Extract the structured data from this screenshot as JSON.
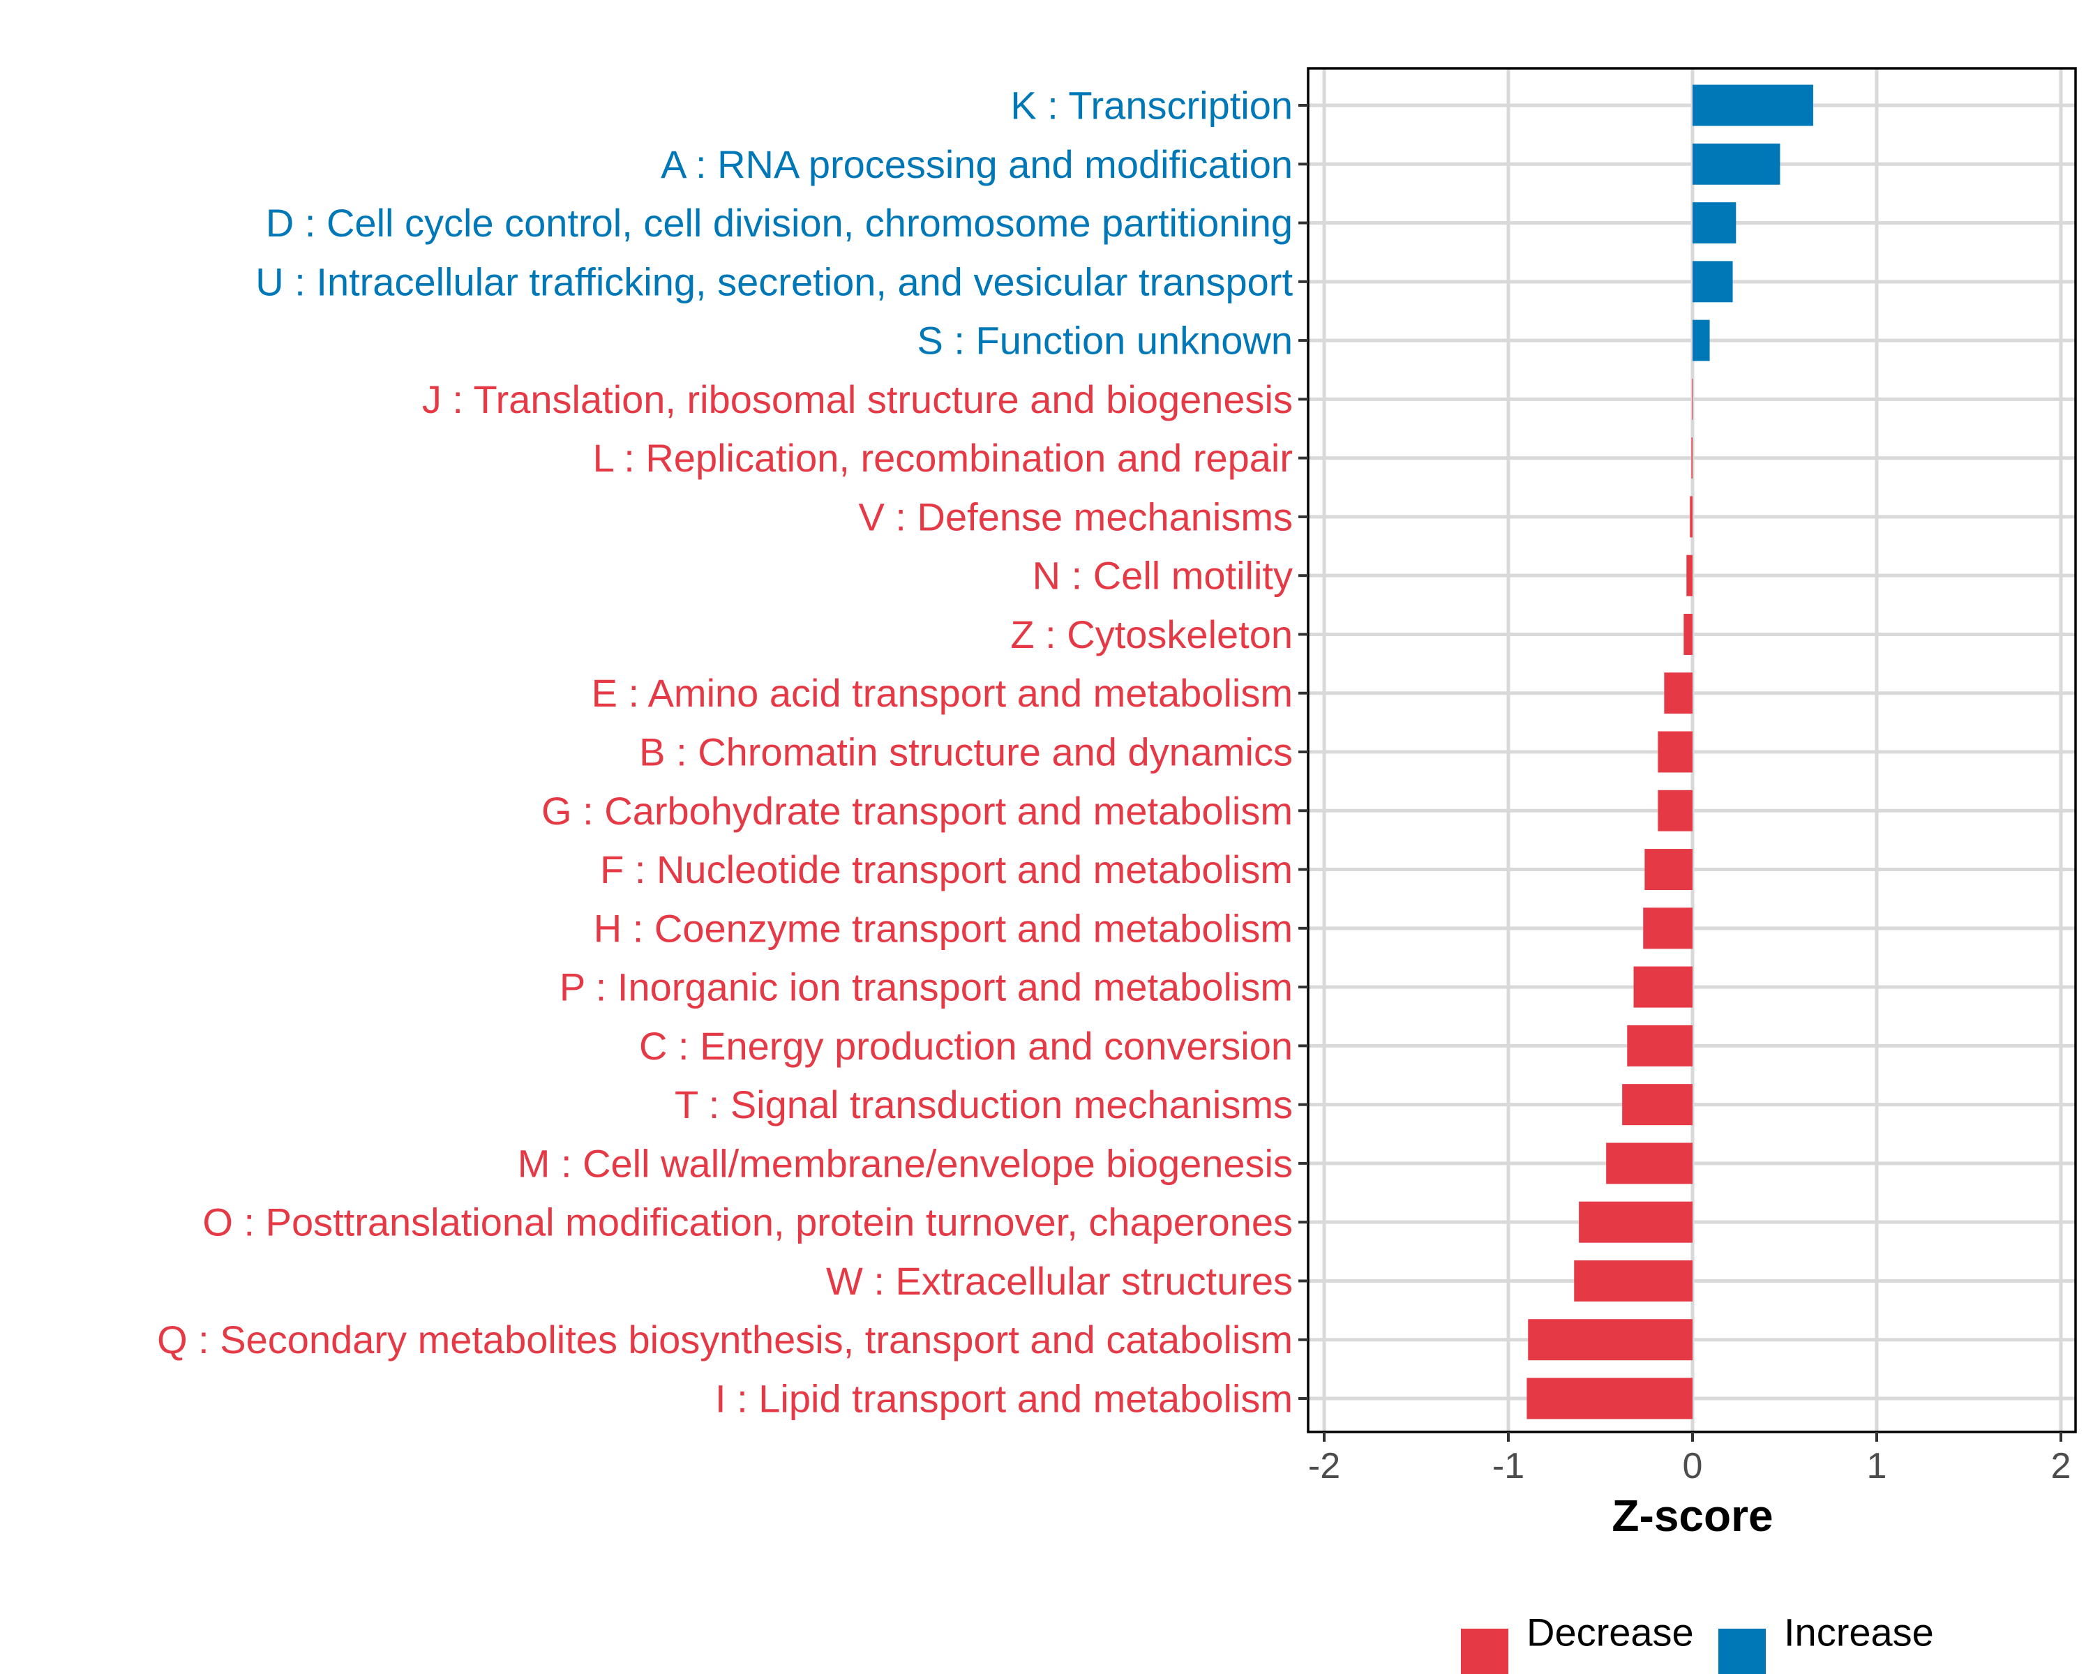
{
  "chart_data": {
    "type": "bar",
    "orientation": "horizontal",
    "title": "",
    "xlabel": "Z-score",
    "ylabel": "",
    "xlim": [
      -2.05,
      2.05
    ],
    "x_ticks": [
      -2,
      -1,
      0,
      1,
      2
    ],
    "x_tick_labels": [
      "-2",
      "-1",
      "0",
      "1",
      "2"
    ],
    "grid": true,
    "legend_position": "bottom",
    "colors": {
      "Decrease": "#E63946",
      "Increase": "#0077B6"
    },
    "legend": [
      {
        "label": "Decrease",
        "color": "#E63946"
      },
      {
        "label": "Increase",
        "color": "#0077B6"
      }
    ],
    "categories": [
      "K : Transcription",
      "A : RNA processing and modification",
      "D : Cell cycle control, cell division, chromosome partitioning",
      "U : Intracellular trafficking, secretion, and vesicular transport",
      "S : Function unknown",
      "J : Translation, ribosomal structure and biogenesis",
      "L : Replication, recombination and repair",
      "V : Defense mechanisms",
      "N : Cell motility",
      "Z : Cytoskeleton",
      "E : Amino acid transport and metabolism",
      "B : Chromatin structure and dynamics",
      "G : Carbohydrate transport and metabolism",
      "F : Nucleotide transport and metabolism",
      "H : Coenzyme transport and metabolism",
      "P : Inorganic ion transport and metabolism",
      "C : Energy production and conversion",
      "T : Signal transduction mechanisms",
      "M : Cell wall/membrane/envelope biogenesis",
      "O : Posttranslational modification, protein turnover, chaperones",
      "W : Extracellular structures",
      "Q : Secondary metabolites biosynthesis, transport and catabolism",
      "I : Lipid transport and metabolism"
    ],
    "values": [
      0.655,
      0.475,
      0.236,
      0.218,
      0.093,
      -0.003,
      -0.006,
      -0.014,
      -0.033,
      -0.048,
      -0.154,
      -0.188,
      -0.188,
      -0.26,
      -0.268,
      -0.32,
      -0.355,
      -0.382,
      -0.469,
      -0.617,
      -0.643,
      -0.893,
      -0.9
    ],
    "groups": [
      "Increase",
      "Increase",
      "Increase",
      "Increase",
      "Increase",
      "Decrease",
      "Decrease",
      "Decrease",
      "Decrease",
      "Decrease",
      "Decrease",
      "Decrease",
      "Decrease",
      "Decrease",
      "Decrease",
      "Decrease",
      "Decrease",
      "Decrease",
      "Decrease",
      "Decrease",
      "Decrease",
      "Decrease",
      "Decrease"
    ]
  }
}
